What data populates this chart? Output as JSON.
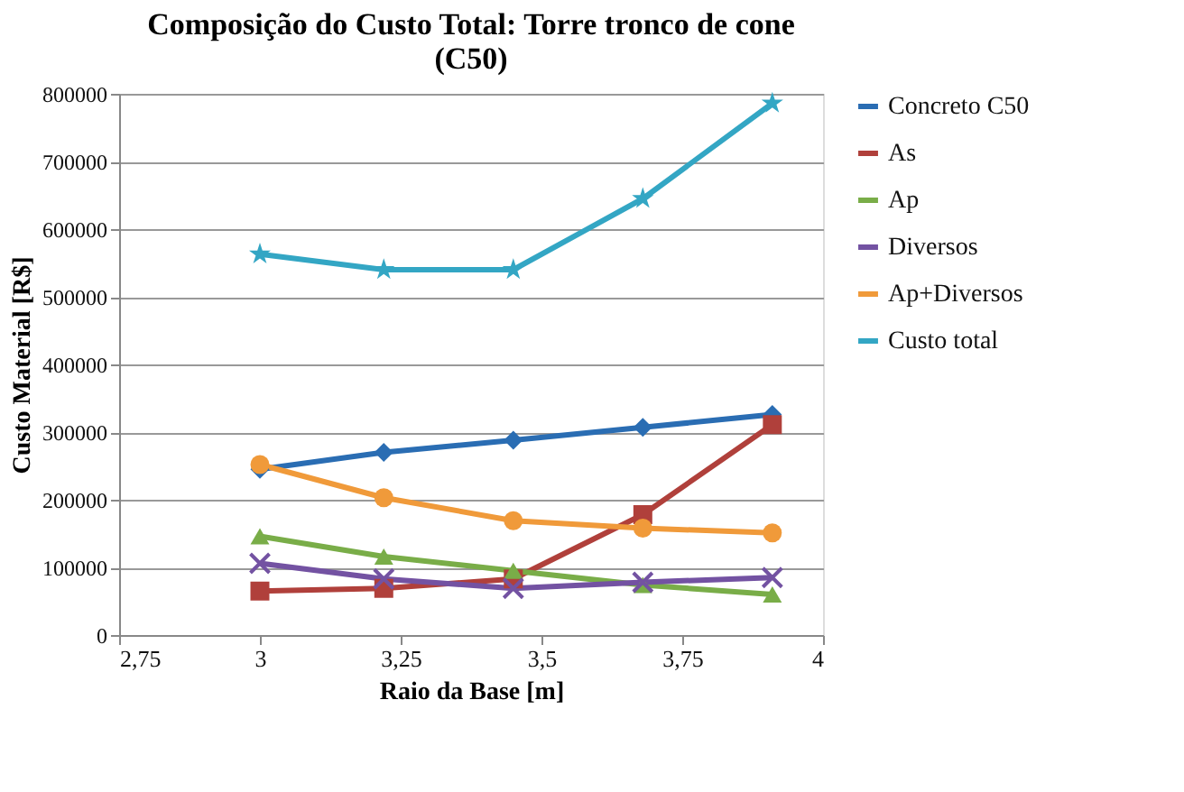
{
  "chart_data": {
    "type": "line",
    "title": "Composição do Custo Total: Torre tronco de cone (C50)",
    "xlabel": "Raio da Base [m]",
    "ylabel": "Custo Material [R$]",
    "x": [
      3.0,
      3.22,
      3.45,
      3.68,
      3.91
    ],
    "series": [
      {
        "name": "Concreto C50",
        "color": "#2a6db3",
        "marker": "diamond",
        "values": [
          245000,
          270000,
          288000,
          307000,
          326000
        ]
      },
      {
        "name": "As",
        "color": "#b0403b",
        "marker": "square",
        "values": [
          65000,
          69000,
          83000,
          178000,
          311000
        ]
      },
      {
        "name": "Ap",
        "color": "#79ad48",
        "marker": "triangle",
        "values": [
          146000,
          116000,
          95000,
          74000,
          60000
        ]
      },
      {
        "name": "Diversos",
        "color": "#7352a2",
        "marker": "cross",
        "values": [
          106000,
          83000,
          69000,
          78000,
          85000
        ]
      },
      {
        "name": "Ap+Diversos",
        "color": "#f09a3a",
        "marker": "circle",
        "values": [
          252000,
          203000,
          169000,
          158000,
          151000
        ]
      },
      {
        "name": "Custo total",
        "color": "#33a6c4",
        "marker": "star",
        "values": [
          563000,
          540000,
          540000,
          645000,
          786000
        ]
      }
    ],
    "xlim": [
      2.75,
      4
    ],
    "xticks": [
      {
        "value": 2.75,
        "label": "2,75"
      },
      3,
      {
        "value": 3.25,
        "label": "3,25"
      },
      {
        "value": 3.5,
        "label": "3,5"
      },
      {
        "value": 3.75,
        "label": "3,75"
      },
      4
    ],
    "ylim": [
      0,
      800000
    ],
    "yticks": [
      0,
      100000,
      200000,
      300000,
      400000,
      500000,
      600000,
      700000,
      800000
    ],
    "grid": "y",
    "legend": "right",
    "line_style": "solid"
  }
}
